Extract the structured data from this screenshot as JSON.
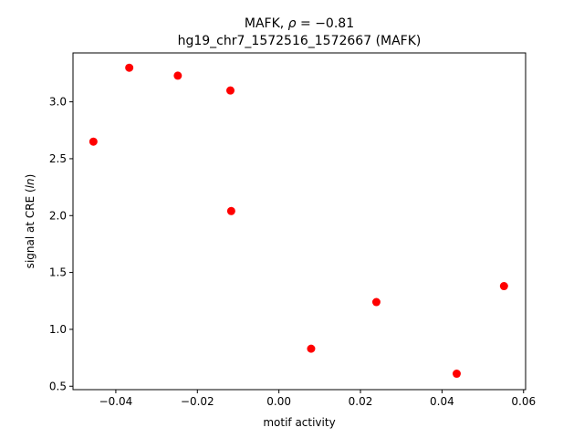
{
  "chart_data": {
    "type": "scatter",
    "title_prefix": "MAFK, ",
    "title_symbol": "ρ",
    "title_suffix": " = −0.81",
    "subtitle": "hg19_chr7_1572516_1572667 (MAFK)",
    "xlabel": "motif activity",
    "ylabel_prefix": "signal at CRE (",
    "ylabel_italic": "ln",
    "ylabel_suffix": ")",
    "xlim": [
      -0.0505,
      0.0605
    ],
    "ylim": [
      0.47,
      3.43
    ],
    "x_ticks": [
      -0.04,
      -0.02,
      0.0,
      0.02,
      0.04,
      0.06
    ],
    "x_tick_labels": [
      "−0.04",
      "−0.02",
      "0.00",
      "0.02",
      "0.04",
      "0.06"
    ],
    "y_ticks": [
      0.5,
      1.0,
      1.5,
      2.0,
      2.5,
      3.0
    ],
    "y_tick_labels": [
      "0.5",
      "1.0",
      "1.5",
      "2.0",
      "2.5",
      "3.0"
    ],
    "marker_color": "#ff0000",
    "grid": false,
    "points": [
      {
        "x": -0.0455,
        "y": 2.65
      },
      {
        "x": -0.0367,
        "y": 3.3
      },
      {
        "x": -0.0248,
        "y": 3.23
      },
      {
        "x": -0.0119,
        "y": 3.1
      },
      {
        "x": -0.0117,
        "y": 2.04
      },
      {
        "x": 0.0079,
        "y": 0.83
      },
      {
        "x": 0.0239,
        "y": 1.24
      },
      {
        "x": 0.0436,
        "y": 0.61
      },
      {
        "x": 0.0552,
        "y": 1.38
      }
    ]
  }
}
